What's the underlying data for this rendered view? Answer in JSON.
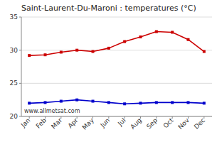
{
  "chart_data": {
    "type": "line",
    "title": "Saint-Laurent-Du-Maroni : temperatures (°C)",
    "categories": [
      "Jan",
      "Feb",
      "Mar",
      "Apr",
      "May",
      "Jun",
      "Jul",
      "Aug",
      "Sep",
      "Oct",
      "Nov",
      "Dec"
    ],
    "series": [
      {
        "color": "#cc0000",
        "values": [
          29.2,
          29.3,
          29.7,
          30.0,
          29.8,
          30.3,
          31.3,
          32.0,
          32.8,
          32.7,
          31.6,
          29.8
        ]
      },
      {
        "color": "#0000cc",
        "values": [
          22.0,
          22.1,
          22.3,
          22.5,
          22.3,
          22.1,
          21.9,
          22.0,
          22.1,
          22.1,
          22.1,
          22.0
        ]
      }
    ],
    "ylim": [
      20,
      35
    ],
    "yticks": [
      20,
      25,
      30,
      35
    ],
    "grid": true,
    "marker": "square",
    "annotations": [
      "www.allmetsat.com"
    ]
  }
}
